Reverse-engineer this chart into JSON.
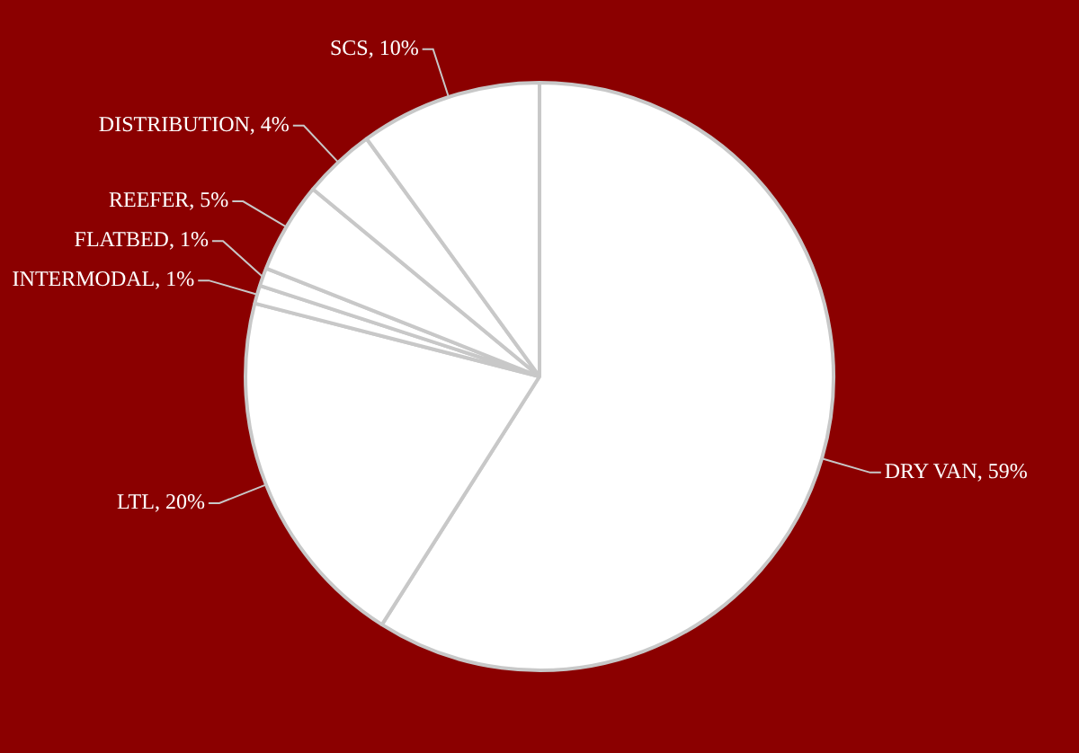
{
  "chart_data": {
    "type": "pie",
    "categories": [
      "DRY VAN",
      "LTL",
      "INTERMODAL",
      "FLATBED",
      "REEFER",
      "DISTRIBUTION",
      "SCS"
    ],
    "values": [
      59,
      20,
      1,
      1,
      5,
      4,
      10
    ],
    "value_labels": [
      "59%",
      "20%",
      "1%",
      "1%",
      "5%",
      "4%",
      "10%"
    ],
    "colors": [
      "#ffffff",
      "#ffffff",
      "#ffffff",
      "#ffffff",
      "#ffffff",
      "#ffffff",
      "#ffffff"
    ],
    "legend": false
  }
}
